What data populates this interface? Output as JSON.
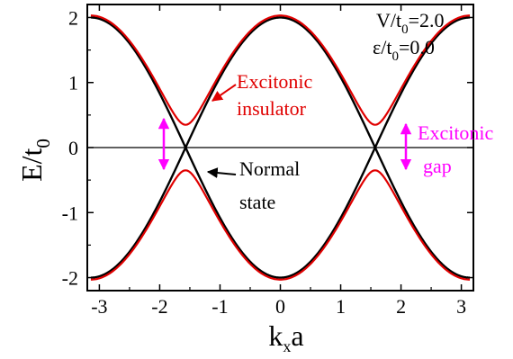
{
  "chart_data": {
    "type": "line",
    "xlabel": {
      "main": "k",
      "sub": "x",
      "rest": "a"
    },
    "ylabel": {
      "main": "E/t",
      "sub": "0"
    },
    "xlim": [
      -3.2,
      3.2
    ],
    "ylim": [
      -2.2,
      2.2
    ],
    "xticks": [
      {
        "value": -3,
        "label": "-3"
      },
      {
        "value": -2,
        "label": "-2"
      },
      {
        "value": -1,
        "label": "-1"
      },
      {
        "value": 0,
        "label": "0"
      },
      {
        "value": 1,
        "label": "1"
      },
      {
        "value": 2,
        "label": "2"
      },
      {
        "value": 3,
        "label": "3"
      }
    ],
    "yticks": [
      {
        "value": -2,
        "label": "-2"
      },
      {
        "value": -1,
        "label": "-1"
      },
      {
        "value": 0,
        "label": "0"
      },
      {
        "value": 1,
        "label": "1"
      },
      {
        "value": 2,
        "label": "2"
      }
    ],
    "params": [
      {
        "pre": "V/t",
        "sub": "0",
        "post": "=2.0"
      },
      {
        "pre": "ε/t",
        "sub": "0",
        "post": "=0.0"
      }
    ],
    "series": [
      {
        "color": "#000000",
        "model": "normal",
        "t0": 1.0,
        "gap": 0.0
      },
      {
        "color": "#e00000",
        "model": "excitonic",
        "t0": 1.0,
        "gap": 0.35
      }
    ],
    "annotations": [
      {
        "lines": [
          "Excitonic",
          "insulator"
        ],
        "color": "#e00000",
        "target": [
          -1.27,
          0.64
        ]
      },
      {
        "lines": [
          "Normal",
          "state"
        ],
        "color": "#000000",
        "target": [
          -1.27,
          -0.46
        ]
      },
      {
        "lines": [
          "Excitonic",
          "gap"
        ],
        "color": "#ff00ff",
        "arrow_x": 1.88,
        "arrow_range": [
          -0.35,
          0.35
        ]
      }
    ],
    "extra_arrows": [
      {
        "color": "#ff00ff",
        "x": -1.88,
        "range": [
          -0.35,
          0.35
        ]
      }
    ],
    "zero_line": true,
    "grid": false,
    "legend": "none"
  }
}
